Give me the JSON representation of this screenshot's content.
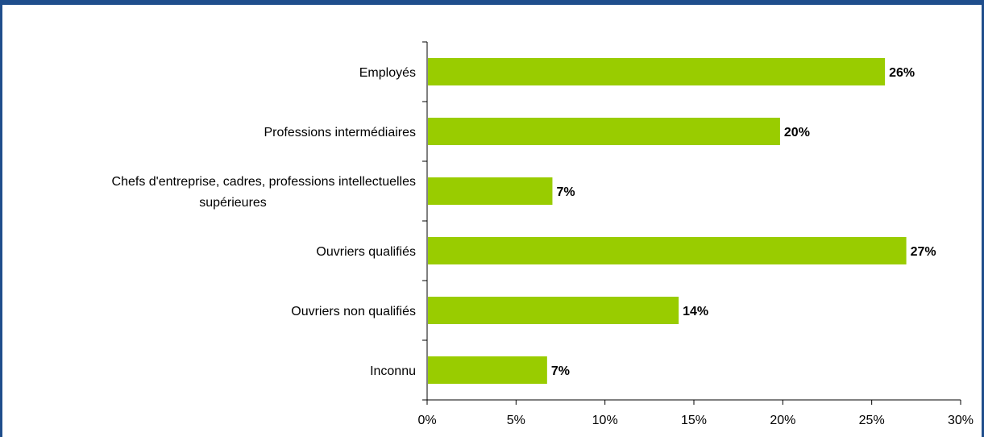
{
  "chart_data": {
    "type": "bar",
    "orientation": "horizontal",
    "title": "",
    "xlabel": "",
    "ylabel": "",
    "categories": [
      "Employés",
      "Professions intermédiaires",
      "Chefs d'entreprise, cadres, professions intellectuelles supérieures",
      "Ouvriers qualifiés",
      "Ouvriers non qualifiés",
      "Inconnu"
    ],
    "category_label_lines": [
      [
        "Employés"
      ],
      [
        "Professions intermédiaires"
      ],
      [
        "Chefs d'entreprise, cadres, professions intellectuelles",
        "supérieures"
      ],
      [
        "Ouvriers qualifiés"
      ],
      [
        "Ouvriers non qualifiés"
      ],
      [
        "Inconnu"
      ]
    ],
    "values": [
      25.7,
      19.8,
      7.0,
      26.9,
      14.1,
      6.7
    ],
    "data_labels": [
      "26%",
      "20%",
      "7%",
      "27%",
      "14%",
      "7%"
    ],
    "xlim": [
      0,
      30
    ],
    "x_ticks": [
      0,
      5,
      10,
      15,
      20,
      25,
      30
    ],
    "x_tick_labels": [
      "0%",
      "5%",
      "10%",
      "15%",
      "20%",
      "25%",
      "30%"
    ],
    "grid": false,
    "legend": "none",
    "bar_color": "#99cc00",
    "frame_color": "#1f4e8c"
  }
}
